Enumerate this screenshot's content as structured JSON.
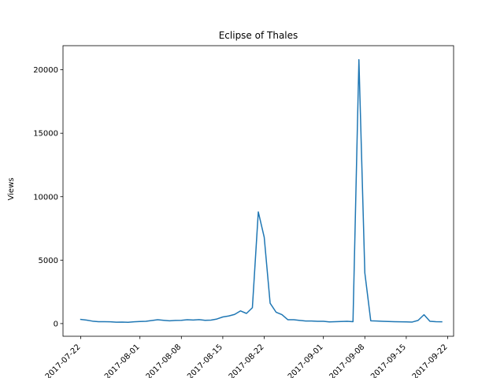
{
  "chart_data": {
    "type": "line",
    "title": "Eclipse of Thales",
    "xlabel": "",
    "ylabel": "Views",
    "x_ticks": [
      "2017-07-22",
      "2017-08-01",
      "2017-08-08",
      "2017-08-15",
      "2017-08-22",
      "2017-09-01",
      "2017-09-08",
      "2017-09-15",
      "2017-09-22"
    ],
    "y_ticks": [
      0,
      5000,
      10000,
      15000,
      20000
    ],
    "ylim": [
      -1000,
      21900
    ],
    "xlim": [
      "2017-07-19",
      "2017-09-23"
    ],
    "grid": false,
    "series": [
      {
        "name": "",
        "color": "#1f77b4",
        "x": [
          "2017-07-22",
          "2017-07-23",
          "2017-07-24",
          "2017-07-25",
          "2017-07-26",
          "2017-07-27",
          "2017-07-28",
          "2017-07-29",
          "2017-07-30",
          "2017-07-31",
          "2017-08-01",
          "2017-08-02",
          "2017-08-03",
          "2017-08-04",
          "2017-08-05",
          "2017-08-06",
          "2017-08-07",
          "2017-08-08",
          "2017-08-09",
          "2017-08-10",
          "2017-08-11",
          "2017-08-12",
          "2017-08-13",
          "2017-08-14",
          "2017-08-15",
          "2017-08-16",
          "2017-08-17",
          "2017-08-18",
          "2017-08-19",
          "2017-08-20",
          "2017-08-21",
          "2017-08-22",
          "2017-08-23",
          "2017-08-24",
          "2017-08-25",
          "2017-08-26",
          "2017-08-27",
          "2017-08-28",
          "2017-08-29",
          "2017-08-30",
          "2017-08-31",
          "2017-09-01",
          "2017-09-02",
          "2017-09-03",
          "2017-09-04",
          "2017-09-05",
          "2017-09-06",
          "2017-09-07",
          "2017-09-08",
          "2017-09-09",
          "2017-09-10",
          "2017-09-11",
          "2017-09-12",
          "2017-09-13",
          "2017-09-14",
          "2017-09-15",
          "2017-09-16",
          "2017-09-17",
          "2017-09-18",
          "2017-09-19",
          "2017-09-20",
          "2017-09-21"
        ],
        "y": [
          330,
          270,
          190,
          150,
          150,
          140,
          110,
          120,
          100,
          140,
          160,
          180,
          240,
          300,
          260,
          220,
          250,
          260,
          300,
          280,
          310,
          260,
          270,
          360,
          520,
          600,
          720,
          1000,
          800,
          1250,
          8800,
          6800,
          1600,
          900,
          700,
          300,
          300,
          250,
          200,
          200,
          180,
          180,
          130,
          150,
          160,
          180,
          150,
          20800,
          4000,
          220,
          200,
          180,
          160,
          150,
          140,
          130,
          120,
          250,
          700,
          180,
          150,
          140
        ]
      }
    ]
  }
}
